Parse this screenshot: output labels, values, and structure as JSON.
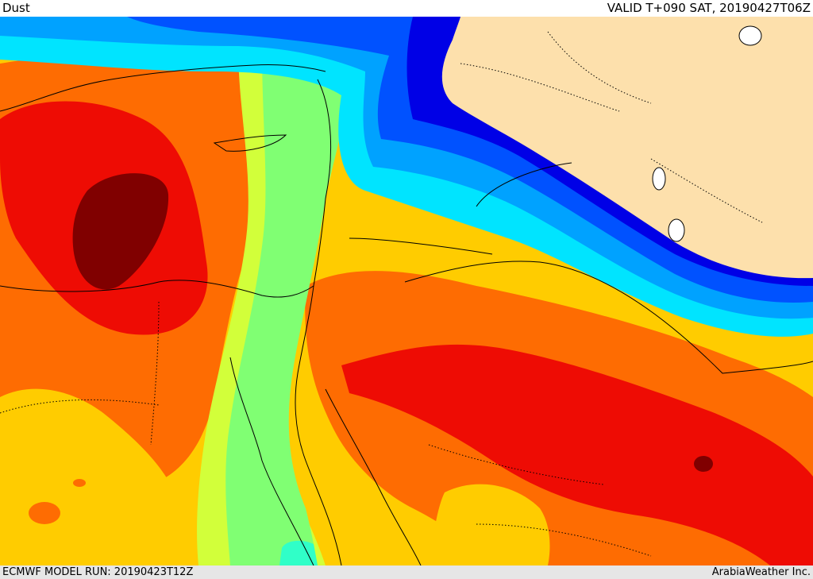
{
  "header": {
    "title": "Dust",
    "valid_time": "VALID T+090 SAT, 20190427T06Z"
  },
  "footer": {
    "model_run": "ECMWF MODEL RUN: 20190423T12Z",
    "credit": "ArabiaWeather Inc."
  },
  "map": {
    "field": "Dust",
    "colors": {
      "dark_red": "#800000",
      "red": "#ee0c04",
      "orange": "#fe6c02",
      "orange_light": "#ffa400",
      "yellow": "#ffcc00",
      "yellow_green": "#d2ff3a",
      "green": "#80ff73",
      "aquamarine": "#30ffc8",
      "cyan": "#00e4ff",
      "sky": "#00a2ff",
      "blue": "#0052ff",
      "deep_blue": "#0000e6",
      "land_no_data": "#fde0ac",
      "sea": "#ffffff"
    }
  }
}
